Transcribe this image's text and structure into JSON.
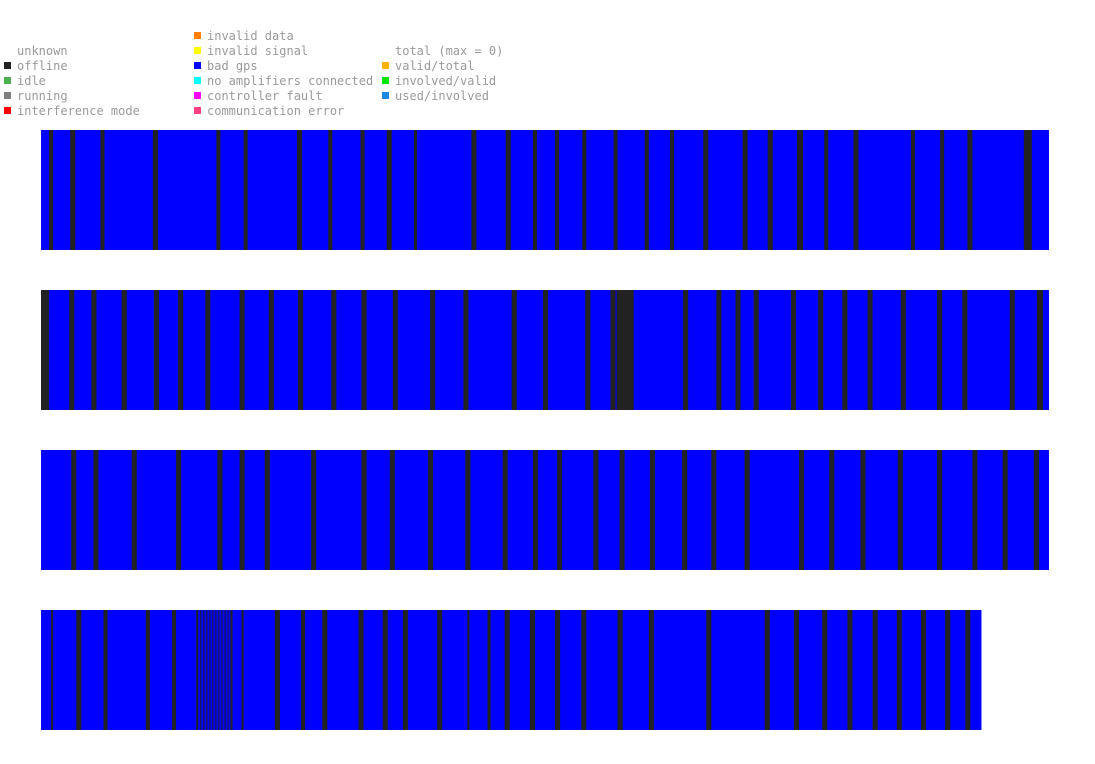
{
  "legend": {
    "col1": [
      {
        "label": "unknown",
        "color": null
      },
      {
        "label": "offline",
        "color": "#222222"
      },
      {
        "label": "idle",
        "color": "#4caf50"
      },
      {
        "label": "running",
        "color": "#808080"
      },
      {
        "label": "interference mode",
        "color": "#ff0000"
      }
    ],
    "col2": [
      {
        "label": "invalid data",
        "color": "#ff7f00"
      },
      {
        "label": "invalid signal",
        "color": "#ffff00"
      },
      {
        "label": "bad gps",
        "color": "#0000ff"
      },
      {
        "label": "no amplifiers connected",
        "color": "#00ffff"
      },
      {
        "label": "controller fault",
        "color": "#ff00ff"
      },
      {
        "label": "communication error",
        "color": "#ff4081"
      }
    ],
    "col3": [
      {
        "label": "total (max = 0)",
        "color": null
      },
      {
        "label": "valid/total",
        "color": "#ffb300"
      },
      {
        "label": "involved/valid",
        "color": "#00e600"
      },
      {
        "label": "used/involved",
        "color": "#1e88e5"
      }
    ]
  },
  "chart_data": {
    "type": "heatmap",
    "description_states": "status timeline strips",
    "base_state": "bad gps",
    "mark_state": "offline",
    "colors": {
      "bad gps": "#0000ff",
      "offline": "#222222"
    },
    "rows": [
      {
        "extent": 1.0,
        "marks": [
          [
            0.008,
            0.012
          ],
          [
            0.029,
            0.034
          ],
          [
            0.059,
            0.063
          ],
          [
            0.111,
            0.116
          ],
          [
            0.174,
            0.178
          ],
          [
            0.201,
            0.205
          ],
          [
            0.254,
            0.259
          ],
          [
            0.285,
            0.289
          ],
          [
            0.317,
            0.321
          ],
          [
            0.343,
            0.348
          ],
          [
            0.37,
            0.373
          ],
          [
            0.427,
            0.432
          ],
          [
            0.461,
            0.466
          ],
          [
            0.488,
            0.492
          ],
          [
            0.51,
            0.514
          ],
          [
            0.537,
            0.541
          ],
          [
            0.568,
            0.572
          ],
          [
            0.599,
            0.603
          ],
          [
            0.624,
            0.628
          ],
          [
            0.657,
            0.662
          ],
          [
            0.696,
            0.701
          ],
          [
            0.721,
            0.726
          ],
          [
            0.75,
            0.756
          ],
          [
            0.777,
            0.781
          ],
          [
            0.806,
            0.811
          ],
          [
            0.863,
            0.867
          ],
          [
            0.892,
            0.896
          ],
          [
            0.919,
            0.924
          ],
          [
            0.975,
            0.983
          ]
        ]
      },
      {
        "extent": 1.0,
        "marks": [
          [
            0.0,
            0.008
          ],
          [
            0.028,
            0.033
          ],
          [
            0.05,
            0.055
          ],
          [
            0.08,
            0.085
          ],
          [
            0.112,
            0.117
          ],
          [
            0.136,
            0.141
          ],
          [
            0.163,
            0.168
          ],
          [
            0.197,
            0.202
          ],
          [
            0.226,
            0.231
          ],
          [
            0.255,
            0.26
          ],
          [
            0.288,
            0.293
          ],
          [
            0.318,
            0.323
          ],
          [
            0.349,
            0.354
          ],
          [
            0.386,
            0.391
          ],
          [
            0.419,
            0.424
          ],
          [
            0.467,
            0.472
          ],
          [
            0.498,
            0.503
          ],
          [
            0.54,
            0.545
          ],
          [
            0.565,
            0.57
          ],
          [
            0.571,
            0.588
          ],
          [
            0.637,
            0.642
          ],
          [
            0.67,
            0.675
          ],
          [
            0.689,
            0.694
          ],
          [
            0.707,
            0.712
          ],
          [
            0.744,
            0.749
          ],
          [
            0.771,
            0.776
          ],
          [
            0.795,
            0.8
          ],
          [
            0.82,
            0.825
          ],
          [
            0.853,
            0.858
          ],
          [
            0.889,
            0.894
          ],
          [
            0.914,
            0.919
          ],
          [
            0.961,
            0.966
          ],
          [
            0.988,
            0.994
          ]
        ]
      },
      {
        "extent": 1.0,
        "marks": [
          [
            0.03,
            0.035
          ],
          [
            0.052,
            0.057
          ],
          [
            0.09,
            0.095
          ],
          [
            0.134,
            0.139
          ],
          [
            0.175,
            0.18
          ],
          [
            0.197,
            0.202
          ],
          [
            0.222,
            0.227
          ],
          [
            0.268,
            0.273
          ],
          [
            0.318,
            0.323
          ],
          [
            0.346,
            0.351
          ],
          [
            0.384,
            0.389
          ],
          [
            0.421,
            0.426
          ],
          [
            0.458,
            0.463
          ],
          [
            0.488,
            0.493
          ],
          [
            0.512,
            0.517
          ],
          [
            0.548,
            0.553
          ],
          [
            0.574,
            0.579
          ],
          [
            0.604,
            0.609
          ],
          [
            0.636,
            0.641
          ],
          [
            0.665,
            0.67
          ],
          [
            0.698,
            0.703
          ],
          [
            0.752,
            0.757
          ],
          [
            0.782,
            0.787
          ],
          [
            0.813,
            0.818
          ],
          [
            0.85,
            0.855
          ],
          [
            0.889,
            0.894
          ],
          [
            0.924,
            0.929
          ],
          [
            0.954,
            0.959
          ],
          [
            0.985,
            0.99
          ]
        ]
      },
      {
        "extent": 0.933,
        "marks": [
          [
            0.01,
            0.012
          ],
          [
            0.035,
            0.04
          ],
          [
            0.062,
            0.066
          ],
          [
            0.104,
            0.108
          ],
          [
            0.13,
            0.134
          ],
          [
            0.154,
            0.156
          ],
          [
            0.158,
            0.159
          ],
          [
            0.161,
            0.162
          ],
          [
            0.164,
            0.165
          ],
          [
            0.167,
            0.168
          ],
          [
            0.17,
            0.171
          ],
          [
            0.173,
            0.174
          ],
          [
            0.176,
            0.177
          ],
          [
            0.179,
            0.18
          ],
          [
            0.182,
            0.183
          ],
          [
            0.185,
            0.186
          ],
          [
            0.188,
            0.19
          ],
          [
            0.199,
            0.201
          ],
          [
            0.232,
            0.237
          ],
          [
            0.258,
            0.262
          ],
          [
            0.279,
            0.284
          ],
          [
            0.315,
            0.32
          ],
          [
            0.339,
            0.344
          ],
          [
            0.359,
            0.364
          ],
          [
            0.393,
            0.398
          ],
          [
            0.423,
            0.425
          ],
          [
            0.443,
            0.446
          ],
          [
            0.46,
            0.465
          ],
          [
            0.485,
            0.49
          ],
          [
            0.51,
            0.515
          ],
          [
            0.536,
            0.541
          ],
          [
            0.572,
            0.577
          ],
          [
            0.603,
            0.608
          ],
          [
            0.66,
            0.665
          ],
          [
            0.718,
            0.723
          ],
          [
            0.747,
            0.752
          ],
          [
            0.775,
            0.78
          ],
          [
            0.8,
            0.805
          ],
          [
            0.825,
            0.83
          ],
          [
            0.849,
            0.854
          ],
          [
            0.873,
            0.878
          ],
          [
            0.897,
            0.902
          ],
          [
            0.917,
            0.922
          ]
        ]
      }
    ]
  }
}
